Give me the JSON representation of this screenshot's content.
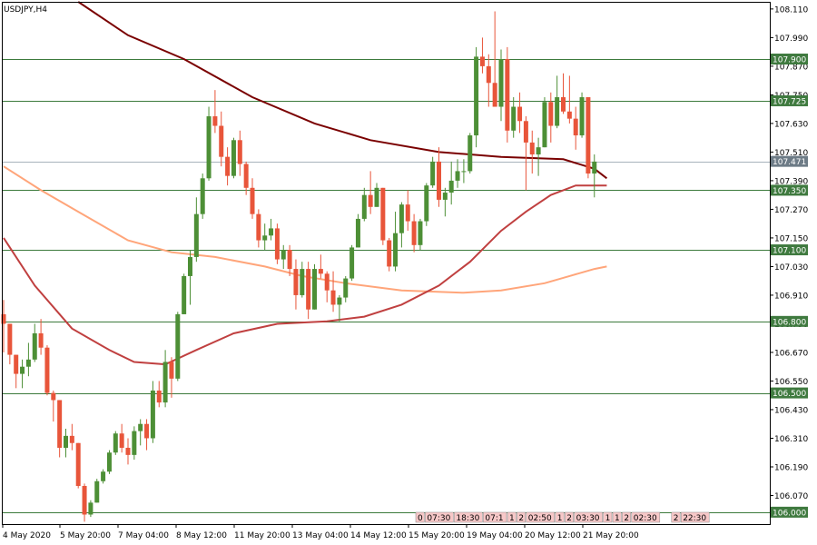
{
  "chart_data": {
    "type": "candlestick",
    "title": "USDJPY,H4",
    "ylim": [
      105.95,
      108.14
    ],
    "y_ticks": [
      "108.110",
      "107.990",
      "107.870",
      "107.750",
      "107.630",
      "107.510",
      "107.390",
      "107.270",
      "107.150",
      "107.030",
      "106.910",
      "106.790",
      "106.670",
      "106.550",
      "106.430",
      "106.310",
      "106.190",
      "106.070"
    ],
    "x_ticks": [
      "4 May 2020",
      "5 May 20:00",
      "7 May 04:00",
      "8 May 12:00",
      "11 May 20:00",
      "13 May 04:00",
      "14 May 12:00",
      "15 May 20:00",
      "19 May 04:00",
      "20 May 12:00",
      "21 May 20:00"
    ],
    "levels": [
      {
        "value": 107.9,
        "label": "107.900"
      },
      {
        "value": 107.725,
        "label": "107.725"
      },
      {
        "value": 107.35,
        "label": "107.350"
      },
      {
        "value": 107.1,
        "label": "107.100"
      },
      {
        "value": 106.8,
        "label": "106.800"
      },
      {
        "value": 106.5,
        "label": "106.500"
      },
      {
        "value": 106.0,
        "label": "106.000"
      }
    ],
    "current_price": {
      "value": 107.471,
      "label": "107.471"
    },
    "session_markers": [
      "0",
      "07:30",
      "18:30",
      "07:1",
      "1",
      "2",
      "02:50",
      "1",
      "2",
      "03:30",
      "1",
      "1",
      "2",
      "02:30",
      "2",
      "22:30"
    ],
    "candles": [
      [
        106.83,
        106.89,
        106.67,
        106.79
      ],
      [
        106.79,
        106.79,
        106.62,
        106.66
      ],
      [
        106.66,
        106.66,
        106.52,
        106.58
      ],
      [
        106.58,
        106.64,
        106.52,
        106.61
      ],
      [
        106.61,
        106.71,
        106.57,
        106.64
      ],
      [
        106.64,
        106.79,
        106.63,
        106.75
      ],
      [
        106.75,
        106.81,
        106.66,
        106.69
      ],
      [
        106.69,
        106.7,
        106.49,
        106.5
      ],
      [
        106.5,
        106.51,
        106.38,
        106.47
      ],
      [
        106.47,
        106.47,
        106.23,
        106.27
      ],
      [
        106.27,
        106.35,
        106.23,
        106.32
      ],
      [
        106.32,
        106.37,
        106.26,
        106.29
      ],
      [
        106.29,
        106.29,
        106.1,
        106.11
      ],
      [
        106.11,
        106.12,
        105.96,
        105.99
      ],
      [
        105.99,
        106.05,
        105.98,
        106.04
      ],
      [
        106.04,
        106.14,
        106.04,
        106.13
      ],
      [
        106.13,
        106.18,
        106.12,
        106.17
      ],
      [
        106.17,
        106.26,
        106.16,
        106.25
      ],
      [
        106.25,
        106.34,
        106.24,
        106.33
      ],
      [
        106.33,
        106.37,
        106.25,
        106.27
      ],
      [
        106.27,
        106.31,
        106.2,
        106.24
      ],
      [
        106.24,
        106.36,
        106.22,
        106.34
      ],
      [
        106.34,
        106.39,
        106.28,
        106.37
      ],
      [
        106.37,
        106.39,
        106.26,
        106.31
      ],
      [
        106.31,
        106.55,
        106.29,
        106.51
      ],
      [
        106.51,
        106.55,
        106.44,
        106.46
      ],
      [
        106.46,
        106.68,
        106.44,
        106.63
      ],
      [
        106.63,
        106.65,
        106.48,
        106.56
      ],
      [
        106.56,
        106.84,
        106.55,
        106.83
      ],
      [
        106.83,
        107.0,
        106.83,
        106.99
      ],
      [
        106.99,
        107.1,
        106.87,
        107.07
      ],
      [
        107.07,
        107.32,
        107.05,
        107.25
      ],
      [
        107.25,
        107.42,
        107.23,
        107.4
      ],
      [
        107.4,
        107.7,
        107.39,
        107.66
      ],
      [
        107.66,
        107.77,
        107.59,
        107.62
      ],
      [
        107.62,
        107.68,
        107.45,
        107.49
      ],
      [
        107.49,
        107.53,
        107.37,
        107.41
      ],
      [
        107.41,
        107.57,
        107.4,
        107.56
      ],
      [
        107.56,
        107.6,
        107.41,
        107.46
      ],
      [
        107.46,
        107.47,
        107.33,
        107.36
      ],
      [
        107.36,
        107.4,
        107.23,
        107.25
      ],
      [
        107.25,
        107.27,
        107.11,
        107.14
      ],
      [
        107.14,
        107.21,
        107.1,
        107.16
      ],
      [
        107.16,
        107.23,
        107.14,
        107.19
      ],
      [
        107.19,
        107.21,
        107.04,
        107.06
      ],
      [
        107.06,
        107.12,
        107.02,
        107.1
      ],
      [
        107.1,
        107.12,
        106.99,
        107.02
      ],
      [
        107.02,
        107.06,
        106.85,
        106.91
      ],
      [
        106.91,
        107.05,
        106.9,
        107.02
      ],
      [
        107.02,
        107.05,
        106.81,
        106.85
      ],
      [
        106.85,
        107.04,
        106.85,
        107.02
      ],
      [
        107.02,
        107.08,
        106.98,
        107.0
      ],
      [
        107.0,
        107.01,
        106.88,
        106.93
      ],
      [
        106.93,
        107.01,
        106.84,
        106.87
      ],
      [
        106.87,
        106.91,
        106.8,
        106.9
      ],
      [
        106.9,
        106.99,
        106.88,
        106.98
      ],
      [
        106.98,
        107.12,
        106.97,
        107.11
      ],
      [
        107.11,
        107.25,
        107.11,
        107.23
      ],
      [
        107.23,
        107.36,
        107.22,
        107.33
      ],
      [
        107.33,
        107.43,
        107.25,
        107.28
      ],
      [
        107.28,
        107.38,
        107.28,
        107.36
      ],
      [
        107.36,
        107.36,
        107.12,
        107.14
      ],
      [
        107.14,
        107.15,
        107.01,
        107.03
      ],
      [
        107.03,
        107.26,
        107.01,
        107.17
      ],
      [
        107.17,
        107.3,
        107.11,
        107.29
      ],
      [
        107.29,
        107.35,
        107.18,
        107.22
      ],
      [
        107.22,
        107.25,
        107.09,
        107.12
      ],
      [
        107.12,
        107.23,
        107.1,
        107.22
      ],
      [
        107.22,
        107.38,
        107.2,
        107.37
      ],
      [
        107.37,
        107.49,
        107.36,
        107.47
      ],
      [
        107.47,
        107.53,
        107.28,
        107.31
      ],
      [
        107.31,
        107.36,
        107.24,
        107.34
      ],
      [
        107.34,
        107.47,
        107.29,
        107.39
      ],
      [
        107.39,
        107.48,
        107.36,
        107.43
      ],
      [
        107.43,
        107.48,
        107.38,
        107.43
      ],
      [
        107.43,
        107.59,
        107.42,
        107.58
      ],
      [
        107.58,
        107.95,
        107.53,
        107.91
      ],
      [
        107.91,
        107.99,
        107.84,
        107.87
      ],
      [
        107.87,
        107.92,
        107.7,
        107.8
      ],
      [
        107.8,
        108.1,
        107.7,
        107.7
      ],
      [
        107.7,
        107.94,
        107.64,
        107.9
      ],
      [
        107.9,
        107.95,
        107.55,
        107.6
      ],
      [
        107.6,
        107.74,
        107.57,
        107.7
      ],
      [
        107.7,
        107.76,
        107.59,
        107.64
      ],
      [
        107.64,
        107.66,
        107.35,
        107.55
      ],
      [
        107.55,
        107.6,
        107.42,
        107.5
      ],
      [
        107.5,
        107.57,
        107.41,
        107.53
      ],
      [
        107.53,
        107.74,
        107.53,
        107.72
      ],
      [
        107.72,
        107.76,
        107.55,
        107.62
      ],
      [
        107.62,
        107.83,
        107.61,
        107.74
      ],
      [
        107.74,
        107.84,
        107.67,
        107.68
      ],
      [
        107.68,
        107.83,
        107.63,
        107.65
      ],
      [
        107.65,
        107.7,
        107.52,
        107.58
      ],
      [
        107.58,
        107.76,
        107.57,
        107.74
      ],
      [
        107.74,
        107.74,
        107.4,
        107.42
      ],
      [
        107.42,
        107.5,
        107.32,
        107.47
      ]
    ],
    "series": [
      {
        "color": "#7a0000",
        "points": [
          [
            12,
            108.14
          ],
          [
            20,
            108.0
          ],
          [
            29,
            107.9
          ],
          [
            40,
            107.74
          ],
          [
            50,
            107.63
          ],
          [
            59,
            107.56
          ],
          [
            70,
            107.51
          ],
          [
            80,
            107.49
          ],
          [
            90,
            107.48
          ],
          [
            95,
            107.44
          ],
          [
            97,
            107.4
          ]
        ]
      },
      {
        "color": "#ffa57a",
        "points": [
          [
            0,
            107.45
          ],
          [
            6,
            107.35
          ],
          [
            12,
            107.26
          ],
          [
            20,
            107.14
          ],
          [
            27,
            107.09
          ],
          [
            34,
            107.07
          ],
          [
            42,
            107.03
          ],
          [
            48,
            106.99
          ],
          [
            55,
            106.96
          ],
          [
            64,
            106.93
          ],
          [
            74,
            106.92
          ],
          [
            80,
            106.93
          ],
          [
            87,
            106.96
          ],
          [
            91,
            106.99
          ],
          [
            95,
            107.02
          ],
          [
            97,
            107.03
          ]
        ]
      },
      {
        "color": "#c04040",
        "points": [
          [
            0,
            107.15
          ],
          [
            5,
            106.95
          ],
          [
            11,
            106.77
          ],
          [
            17,
            106.68
          ],
          [
            21,
            106.63
          ],
          [
            26,
            106.62
          ],
          [
            31,
            106.68
          ],
          [
            37,
            106.75
          ],
          [
            44,
            106.79
          ],
          [
            52,
            106.8
          ],
          [
            58,
            106.82
          ],
          [
            64,
            106.87
          ],
          [
            70,
            106.95
          ],
          [
            75,
            107.05
          ],
          [
            80,
            107.18
          ],
          [
            84,
            107.26
          ],
          [
            88,
            107.33
          ],
          [
            92,
            107.37
          ],
          [
            97,
            107.37
          ]
        ]
      }
    ]
  },
  "colors": {
    "bull": "#4d8f36",
    "bear": "#e8553a",
    "level_line": "#3c7a3c",
    "level_label_bg": "#3f7a3f",
    "current_label_bg": "#6d7b86",
    "frame": "#000000",
    "marker_fill": "#f7c8c8"
  }
}
